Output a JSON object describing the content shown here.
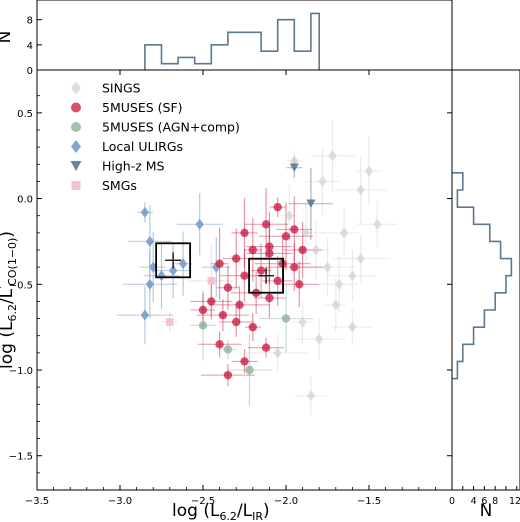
{
  "chart_data": {
    "type": "scatter",
    "xlabel": "log (L",
    "xlabel_sub": "6.2",
    "xlabel_mid": "/L",
    "xlabel_sub2": "IR",
    "xlabel_end": ")",
    "ylabel": "log (L",
    "ylabel_sub": "6.2",
    "ylabel_mid": "/L",
    "ylabel_sup": "'",
    "ylabel_sub2": "CO(1−0)",
    "ylabel_end": ")",
    "xlim": [
      -3.5,
      -1.0
    ],
    "ylim": [
      -1.7,
      0.75
    ],
    "xticks": [
      -3.5,
      -3.0,
      -2.5,
      -2.0,
      -1.5
    ],
    "xtick_labels": [
      "−3.5",
      "−3.0",
      "−2.5",
      "−2.0",
      "−1.5"
    ],
    "yticks": [
      0.5,
      0.0,
      -0.5,
      -1.0,
      -1.5
    ],
    "ytick_labels": [
      "0.5",
      "0.0",
      "−0.5",
      "−1.0",
      "−1.5"
    ],
    "legend_position": "top-left",
    "colors": {
      "SINGS": "#d0d0d0",
      "5MUSES (SF)": "#c8143c",
      "5MUSES (AGN+comp)": "#8fb39a",
      "Local ULIRGs": "#7a9cc6",
      "High-z MS": "#5d7891",
      "SMGs": "#f4bcc9"
    },
    "series": [
      {
        "name": "SINGS",
        "marker": "diamond",
        "points": [
          [
            -1.95,
            0.22
          ],
          [
            -1.72,
            0.25
          ],
          [
            -1.5,
            0.16
          ],
          [
            -1.55,
            0.05
          ],
          [
            -1.78,
            0.1
          ],
          [
            -1.98,
            -0.1
          ],
          [
            -1.88,
            -0.2
          ],
          [
            -1.82,
            -0.3
          ],
          [
            -1.75,
            -0.4
          ],
          [
            -1.68,
            -0.5
          ],
          [
            -1.7,
            -0.62
          ],
          [
            -1.6,
            -0.45
          ],
          [
            -1.65,
            -0.2
          ],
          [
            -1.55,
            -0.35
          ],
          [
            -1.45,
            -0.15
          ],
          [
            -1.9,
            -0.72
          ],
          [
            -1.8,
            -0.82
          ],
          [
            -1.85,
            -1.15
          ],
          [
            -2.05,
            -0.9
          ],
          [
            -1.6,
            -0.75
          ]
        ]
      },
      {
        "name": "5MUSES (SF)",
        "marker": "circle",
        "points": [
          [
            -2.05,
            -0.05
          ],
          [
            -2.12,
            -0.15
          ],
          [
            -2.25,
            -0.2
          ],
          [
            -2.0,
            -0.22
          ],
          [
            -1.95,
            -0.18
          ],
          [
            -2.2,
            -0.3
          ],
          [
            -2.1,
            -0.32
          ],
          [
            -2.3,
            -0.35
          ],
          [
            -2.02,
            -0.38
          ],
          [
            -1.9,
            -0.3
          ],
          [
            -2.15,
            -0.42
          ],
          [
            -2.25,
            -0.45
          ],
          [
            -2.05,
            -0.48
          ],
          [
            -1.95,
            -0.4
          ],
          [
            -1.92,
            -0.5
          ],
          [
            -2.35,
            -0.52
          ],
          [
            -2.18,
            -0.55
          ],
          [
            -2.1,
            -0.58
          ],
          [
            -2.28,
            -0.62
          ],
          [
            -2.45,
            -0.6
          ],
          [
            -2.5,
            -0.65
          ],
          [
            -2.38,
            -0.68
          ],
          [
            -2.3,
            -0.72
          ],
          [
            -2.2,
            -0.75
          ],
          [
            -2.4,
            -0.85
          ],
          [
            -2.25,
            -0.95
          ],
          [
            -2.35,
            -1.03
          ],
          [
            -2.12,
            -0.87
          ],
          [
            -2.4,
            -0.38
          ],
          [
            -2.1,
            -0.28
          ]
        ]
      },
      {
        "name": "5MUSES (AGN+comp)",
        "marker": "circle",
        "points": [
          [
            -2.35,
            -0.88
          ],
          [
            -2.22,
            -1.0
          ],
          [
            -2.5,
            -0.74
          ],
          [
            -2.0,
            -0.7
          ]
        ]
      },
      {
        "name": "Local ULIRGs",
        "marker": "diamond",
        "points": [
          [
            -2.85,
            -0.08
          ],
          [
            -2.82,
            -0.25
          ],
          [
            -2.8,
            -0.4
          ],
          [
            -2.82,
            -0.5
          ],
          [
            -2.75,
            -0.45
          ],
          [
            -2.62,
            -0.38
          ],
          [
            -2.52,
            -0.15
          ],
          [
            -2.42,
            -0.4
          ],
          [
            -2.85,
            -0.68
          ],
          [
            -2.68,
            -0.42
          ]
        ]
      },
      {
        "name": "High-z MS",
        "marker": "triangle-down",
        "points": [
          [
            -1.95,
            0.18
          ],
          [
            -1.85,
            -0.03
          ]
        ]
      },
      {
        "name": "SMGs",
        "marker": "square",
        "points": [
          [
            -2.7,
            -0.72
          ],
          [
            -2.45,
            -0.48
          ]
        ]
      }
    ],
    "averages": [
      {
        "x": -2.68,
        "y": -0.36
      },
      {
        "x": -2.12,
        "y": -0.45
      }
    ],
    "top_hist": {
      "ylabel": "N",
      "yticks": [
        0,
        4,
        8
      ],
      "edges": [
        -2.85,
        -2.75,
        -2.65,
        -2.55,
        -2.45,
        -2.35,
        -2.25,
        -2.15,
        -2.05,
        -1.95,
        -1.85,
        -1.8
      ],
      "counts": [
        4,
        1,
        2,
        1,
        4,
        6,
        6,
        3,
        8,
        3,
        9
      ]
    },
    "right_hist": {
      "xlabel": "N",
      "xticks": [
        0,
        2,
        4,
        6,
        8,
        10,
        12
      ],
      "xtick_labels": [
        "0",
        "",
        "4",
        "6",
        "8",
        "",
        "12"
      ],
      "edges": [
        -1.05,
        -0.95,
        -0.85,
        -0.75,
        -0.65,
        -0.55,
        -0.45,
        -0.35,
        -0.25,
        -0.15,
        -0.05,
        0.05,
        0.15
      ],
      "counts": [
        1,
        2,
        4,
        6,
        8,
        10,
        11,
        9,
        7,
        4,
        1,
        2
      ]
    }
  }
}
